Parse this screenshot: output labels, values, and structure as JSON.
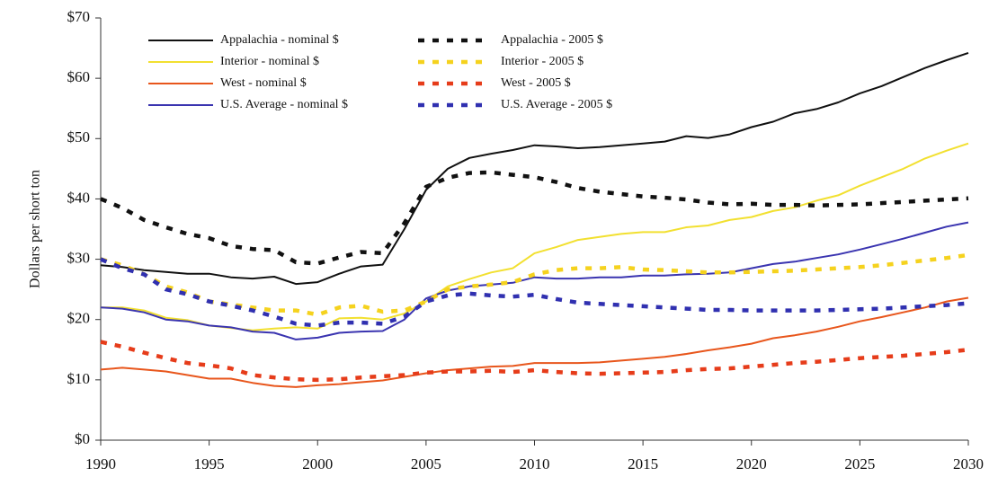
{
  "chart_data": {
    "type": "line",
    "y_label": "Dollars per short ton",
    "legend": "upper left",
    "x": [
      1990,
      1991,
      1992,
      1993,
      1994,
      1995,
      1996,
      1997,
      1998,
      1999,
      2000,
      2001,
      2002,
      2003,
      2004,
      2005,
      2006,
      2007,
      2008,
      2009,
      2010,
      2011,
      2012,
      2013,
      2014,
      2015,
      2016,
      2017,
      2018,
      2019,
      2020,
      2021,
      2022,
      2023,
      2024,
      2025,
      2026,
      2027,
      2028,
      2029,
      2030
    ],
    "xlim": [
      1990,
      2030
    ],
    "xticks": [
      1990,
      1995,
      2000,
      2005,
      2010,
      2015,
      2020,
      2025,
      2030
    ],
    "ylim": [
      0,
      70
    ],
    "yticks": [
      {
        "value": 0,
        "label": "$0"
      },
      {
        "value": 10,
        "label": "$10"
      },
      {
        "value": 20,
        "label": "$20"
      },
      {
        "value": 30,
        "label": "$30"
      },
      {
        "value": 40,
        "label": "$40"
      },
      {
        "value": 50,
        "label": "$50"
      },
      {
        "value": 60,
        "label": "$60"
      },
      {
        "value": 70,
        "label": "$70"
      }
    ],
    "series": [
      {
        "name": "Appalachia - nominal $",
        "color": "#111111",
        "dashed": false,
        "values": [
          29,
          28.7,
          28.2,
          27.9,
          27.6,
          27.6,
          27,
          26.8,
          27.1,
          25.9,
          26.2,
          27.6,
          28.8,
          29.1,
          35,
          41.5,
          45,
          46.8,
          47.5,
          48.1,
          48.9,
          48.7,
          48.4,
          48.6,
          48.9,
          49.2,
          49.5,
          50.4,
          50.1,
          50.7,
          51.9,
          52.8,
          54.2,
          54.9,
          56,
          57.5,
          58.7,
          60.2,
          61.7,
          63,
          64.2
        ]
      },
      {
        "name": "Interior - nominal $",
        "color": "#f2e030",
        "dashed": false,
        "values": [
          22,
          22,
          21.5,
          20.3,
          19.9,
          19,
          18.6,
          18.2,
          18.5,
          18.7,
          18.5,
          20.2,
          20.3,
          20,
          21,
          23,
          25.5,
          26.7,
          27.8,
          28.5,
          31,
          32,
          33.2,
          33.7,
          34.2,
          34.5,
          34.5,
          35.3,
          35.6,
          36.5,
          37,
          38,
          38.6,
          39.7,
          40.6,
          42.2,
          43.6,
          45,
          46.7,
          48,
          49.2
        ]
      },
      {
        "name": "West - nominal $",
        "color": "#e8561c",
        "dashed": false,
        "values": [
          11.7,
          12,
          11.7,
          11.4,
          10.8,
          10.2,
          10.2,
          9.5,
          9,
          8.8,
          9.1,
          9.3,
          9.6,
          9.9,
          10.5,
          11.1,
          11.6,
          11.9,
          12.2,
          12.3,
          12.8,
          12.8,
          12.8,
          12.9,
          13.2,
          13.5,
          13.8,
          14.3,
          14.9,
          15.4,
          16,
          16.9,
          17.4,
          18,
          18.8,
          19.7,
          20.4,
          21.2,
          22,
          23,
          23.6
        ]
      },
      {
        "name": "U.S. Average - nominal $",
        "color": "#3a34b0",
        "dashed": false,
        "values": [
          22,
          21.8,
          21.2,
          20,
          19.7,
          19,
          18.7,
          18,
          17.8,
          16.7,
          17,
          17.8,
          18,
          18.1,
          20,
          23.5,
          24.8,
          25.5,
          25.8,
          26.1,
          27,
          26.8,
          26.8,
          27,
          27,
          27.3,
          27.3,
          27.5,
          27.6,
          27.8,
          28.5,
          29.2,
          29.6,
          30.2,
          30.8,
          31.6,
          32.5,
          33.4,
          34.4,
          35.4,
          36.1
        ]
      },
      {
        "name": "Appalachia - 2005 $",
        "color": "#111111",
        "dashed": true,
        "values": [
          40,
          38.5,
          36.5,
          35.3,
          34.2,
          33.5,
          32.2,
          31.7,
          31.5,
          29.5,
          29.3,
          30.3,
          31.2,
          31,
          36,
          42,
          43.5,
          44.3,
          44.4,
          44,
          43.6,
          42.8,
          41.8,
          41.2,
          40.8,
          40.4,
          40.2,
          39.9,
          39.4,
          39.1,
          39.2,
          39,
          39,
          38.9,
          39,
          39.1,
          39.3,
          39.5,
          39.7,
          39.9,
          40.1
        ]
      },
      {
        "name": "Interior - 2005 $",
        "color": "#f5d21e",
        "dashed": true,
        "values": [
          30,
          29,
          27.5,
          25.5,
          24.5,
          23,
          22.5,
          22,
          21.5,
          21.5,
          20.8,
          22,
          22.3,
          21.3,
          21.5,
          23,
          25,
          25.5,
          25.8,
          26.2,
          27.5,
          28.2,
          28.5,
          28.5,
          28.7,
          28.3,
          28.2,
          28,
          27.8,
          27.8,
          27.9,
          28,
          28.1,
          28.3,
          28.5,
          28.7,
          29,
          29.4,
          29.8,
          30.2,
          30.7
        ]
      },
      {
        "name": "West - 2005 $",
        "color": "#e63c1a",
        "dashed": true,
        "values": [
          16.3,
          15.5,
          14.5,
          13.6,
          12.8,
          12.4,
          11.9,
          10.8,
          10.4,
          10.1,
          10,
          10.1,
          10.4,
          10.6,
          10.8,
          11.2,
          11.4,
          11.4,
          11.5,
          11.3,
          11.6,
          11.3,
          11.1,
          11,
          11.1,
          11.2,
          11.3,
          11.6,
          11.8,
          11.9,
          12.2,
          12.5,
          12.8,
          13,
          13.3,
          13.6,
          13.8,
          14,
          14.3,
          14.6,
          15
        ]
      },
      {
        "name": "U.S. Average - 2005 $",
        "color": "#3030b0",
        "dashed": true,
        "values": [
          30,
          28.5,
          27.5,
          25,
          24.2,
          23,
          22.3,
          21.5,
          20.5,
          19.3,
          19,
          19.5,
          19.5,
          19.3,
          20.5,
          23,
          24,
          24.3,
          24,
          23.8,
          24.1,
          23.4,
          22.8,
          22.6,
          22.4,
          22.2,
          22,
          21.8,
          21.6,
          21.6,
          21.5,
          21.5,
          21.5,
          21.5,
          21.6,
          21.7,
          21.8,
          22,
          22.2,
          22.4,
          22.7
        ]
      }
    ]
  }
}
